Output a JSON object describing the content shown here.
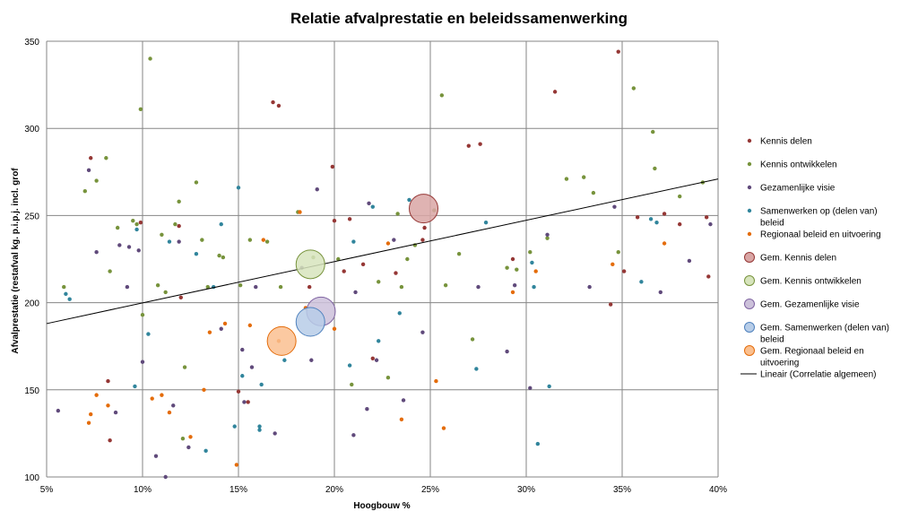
{
  "chart_data": {
    "type": "scatter",
    "title": "Relatie afvalprestatie en beleidssamenwerking",
    "xlabel": "Hoogbouw %",
    "ylabel": "Afvalprestatie (restafval kg. p.i.p.j. incl. grof",
    "xlim": [
      0.05,
      0.4
    ],
    "ylim": [
      100,
      350
    ],
    "x_ticks": [
      0.05,
      0.1,
      0.15,
      0.2,
      0.25,
      0.3,
      0.35,
      0.4
    ],
    "x_tick_labels": [
      "5%",
      "10%",
      "15%",
      "20%",
      "25%",
      "30%",
      "35%",
      "40%"
    ],
    "y_ticks": [
      100,
      150,
      200,
      250,
      300,
      350
    ],
    "y_tick_labels": [
      "100",
      "150",
      "200",
      "250",
      "300",
      "350"
    ],
    "grid": true,
    "legend_position": "right",
    "series": [
      {
        "name": "Kennis delen",
        "color": "#953735",
        "marker": "point",
        "points": [
          [
            0.073,
            283
          ],
          [
            0.082,
            155
          ],
          [
            0.083,
            121
          ],
          [
            0.099,
            246
          ],
          [
            0.119,
            244
          ],
          [
            0.12,
            203
          ],
          [
            0.15,
            149
          ],
          [
            0.155,
            143
          ],
          [
            0.168,
            315
          ],
          [
            0.171,
            313
          ],
          [
            0.187,
            209
          ],
          [
            0.199,
            278
          ],
          [
            0.2,
            247
          ],
          [
            0.205,
            218
          ],
          [
            0.208,
            248
          ],
          [
            0.215,
            222
          ],
          [
            0.22,
            168
          ],
          [
            0.232,
            217
          ],
          [
            0.246,
            236
          ],
          [
            0.247,
            243
          ],
          [
            0.27,
            290
          ],
          [
            0.276,
            291
          ],
          [
            0.293,
            225
          ],
          [
            0.315,
            321
          ],
          [
            0.344,
            199
          ],
          [
            0.348,
            344
          ],
          [
            0.351,
            218
          ],
          [
            0.358,
            249
          ],
          [
            0.372,
            251
          ],
          [
            0.38,
            245
          ],
          [
            0.394,
            249
          ],
          [
            0.395,
            215
          ]
        ]
      },
      {
        "name": "Kennis ontwikkelen",
        "color": "#77933c",
        "marker": "point",
        "points": [
          [
            0.059,
            209
          ],
          [
            0.07,
            264
          ],
          [
            0.076,
            270
          ],
          [
            0.081,
            283
          ],
          [
            0.083,
            218
          ],
          [
            0.087,
            243
          ],
          [
            0.095,
            247
          ],
          [
            0.097,
            245
          ],
          [
            0.099,
            311
          ],
          [
            0.104,
            340
          ],
          [
            0.1,
            193
          ],
          [
            0.108,
            210
          ],
          [
            0.11,
            239
          ],
          [
            0.112,
            206
          ],
          [
            0.117,
            245
          ],
          [
            0.119,
            258
          ],
          [
            0.121,
            122
          ],
          [
            0.122,
            163
          ],
          [
            0.128,
            269
          ],
          [
            0.131,
            236
          ],
          [
            0.134,
            209
          ],
          [
            0.14,
            227
          ],
          [
            0.142,
            226
          ],
          [
            0.151,
            210
          ],
          [
            0.156,
            236
          ],
          [
            0.165,
            235
          ],
          [
            0.172,
            209
          ],
          [
            0.181,
            252
          ],
          [
            0.189,
            226
          ],
          [
            0.202,
            225
          ],
          [
            0.209,
            153
          ],
          [
            0.223,
            212
          ],
          [
            0.228,
            157
          ],
          [
            0.233,
            251
          ],
          [
            0.235,
            209
          ],
          [
            0.238,
            225
          ],
          [
            0.242,
            233
          ],
          [
            0.252,
            253
          ],
          [
            0.256,
            319
          ],
          [
            0.258,
            210
          ],
          [
            0.265,
            228
          ],
          [
            0.272,
            179
          ],
          [
            0.29,
            220
          ],
          [
            0.295,
            219
          ],
          [
            0.302,
            229
          ],
          [
            0.311,
            237
          ],
          [
            0.321,
            271
          ],
          [
            0.33,
            272
          ],
          [
            0.335,
            263
          ],
          [
            0.356,
            323
          ],
          [
            0.366,
            298
          ],
          [
            0.367,
            277
          ],
          [
            0.38,
            261
          ],
          [
            0.392,
            269
          ],
          [
            0.348,
            229
          ]
        ]
      },
      {
        "name": "Gezamenlijke visie",
        "color": "#604a7b",
        "marker": "point",
        "points": [
          [
            0.056,
            138
          ],
          [
            0.072,
            276
          ],
          [
            0.076,
            229
          ],
          [
            0.086,
            137
          ],
          [
            0.088,
            233
          ],
          [
            0.092,
            209
          ],
          [
            0.093,
            232
          ],
          [
            0.098,
            230
          ],
          [
            0.1,
            166
          ],
          [
            0.107,
            112
          ],
          [
            0.112,
            100
          ],
          [
            0.116,
            141
          ],
          [
            0.119,
            235
          ],
          [
            0.124,
            117
          ],
          [
            0.141,
            185
          ],
          [
            0.152,
            173
          ],
          [
            0.153,
            143
          ],
          [
            0.157,
            163
          ],
          [
            0.159,
            209
          ],
          [
            0.169,
            125
          ],
          [
            0.183,
            220
          ],
          [
            0.188,
            167
          ],
          [
            0.191,
            265
          ],
          [
            0.21,
            124
          ],
          [
            0.211,
            206
          ],
          [
            0.217,
            139
          ],
          [
            0.218,
            257
          ],
          [
            0.222,
            167
          ],
          [
            0.231,
            236
          ],
          [
            0.236,
            144
          ],
          [
            0.246,
            183
          ],
          [
            0.275,
            209
          ],
          [
            0.29,
            172
          ],
          [
            0.294,
            210
          ],
          [
            0.302,
            151
          ],
          [
            0.311,
            239
          ],
          [
            0.333,
            209
          ],
          [
            0.346,
            255
          ],
          [
            0.37,
            206
          ],
          [
            0.385,
            224
          ],
          [
            0.396,
            245
          ]
        ]
      },
      {
        "name": "Samenwerken op (delen van) beleid",
        "color": "#31859c",
        "marker": "point",
        "points": [
          [
            0.06,
            205
          ],
          [
            0.062,
            202
          ],
          [
            0.096,
            152
          ],
          [
            0.097,
            242
          ],
          [
            0.103,
            182
          ],
          [
            0.114,
            235
          ],
          [
            0.128,
            228
          ],
          [
            0.133,
            115
          ],
          [
            0.137,
            209
          ],
          [
            0.141,
            245
          ],
          [
            0.148,
            129
          ],
          [
            0.15,
            266
          ],
          [
            0.152,
            158
          ],
          [
            0.161,
            127
          ],
          [
            0.161,
            129
          ],
          [
            0.162,
            153
          ],
          [
            0.174,
            167
          ],
          [
            0.208,
            164
          ],
          [
            0.21,
            235
          ],
          [
            0.22,
            255
          ],
          [
            0.223,
            178
          ],
          [
            0.234,
            194
          ],
          [
            0.239,
            259
          ],
          [
            0.274,
            162
          ],
          [
            0.279,
            246
          ],
          [
            0.303,
            223
          ],
          [
            0.304,
            209
          ],
          [
            0.306,
            119
          ],
          [
            0.312,
            152
          ],
          [
            0.36,
            212
          ],
          [
            0.365,
            248
          ],
          [
            0.368,
            246
          ]
        ]
      },
      {
        "name": "Regionaal beleid en uitvoering",
        "color": "#e46c0a",
        "marker": "point",
        "points": [
          [
            0.072,
            131
          ],
          [
            0.073,
            136
          ],
          [
            0.076,
            147
          ],
          [
            0.082,
            141
          ],
          [
            0.105,
            145
          ],
          [
            0.11,
            147
          ],
          [
            0.114,
            137
          ],
          [
            0.125,
            123
          ],
          [
            0.132,
            150
          ],
          [
            0.135,
            183
          ],
          [
            0.143,
            188
          ],
          [
            0.149,
            107
          ],
          [
            0.156,
            187
          ],
          [
            0.163,
            236
          ],
          [
            0.171,
            178
          ],
          [
            0.182,
            252
          ],
          [
            0.185,
            197
          ],
          [
            0.2,
            185
          ],
          [
            0.228,
            234
          ],
          [
            0.235,
            133
          ],
          [
            0.253,
            155
          ],
          [
            0.257,
            128
          ],
          [
            0.293,
            206
          ],
          [
            0.305,
            218
          ],
          [
            0.345,
            222
          ],
          [
            0.372,
            234
          ]
        ]
      },
      {
        "name": "Gem. Kennis delen",
        "color": "#d9a6a5",
        "stroke": "#953735",
        "marker": "bubble",
        "radius": 16,
        "points": [
          [
            0.2465,
            254
          ]
        ]
      },
      {
        "name": "Gem. Kennis ontwikkelen",
        "color": "#d7e4bd",
        "stroke": "#77933c",
        "marker": "bubble",
        "radius": 16,
        "points": [
          [
            0.1875,
            222
          ]
        ]
      },
      {
        "name": "Gem. Gezamenlijke visie",
        "color": "#ccc1da",
        "stroke": "#8064a2",
        "marker": "bubble",
        "radius": 16,
        "points": [
          [
            0.193,
            195
          ]
        ]
      },
      {
        "name": "Gem. Samenwerken (delen van) beleid",
        "color": "#b7cde8",
        "stroke": "#4f81bd",
        "marker": "bubble",
        "radius": 16,
        "points": [
          [
            0.1875,
            189
          ]
        ]
      },
      {
        "name": "Gem. Regionaal beleid en uitvoering",
        "color": "#fac090",
        "stroke": "#e46c0a",
        "marker": "bubble",
        "radius": 16,
        "points": [
          [
            0.1725,
            178
          ]
        ]
      }
    ],
    "trendline": {
      "name": "Lineair (Correlatie algemeen)",
      "color": "#000000",
      "points": [
        [
          0.05,
          188
        ],
        [
          0.4,
          271
        ]
      ]
    }
  }
}
